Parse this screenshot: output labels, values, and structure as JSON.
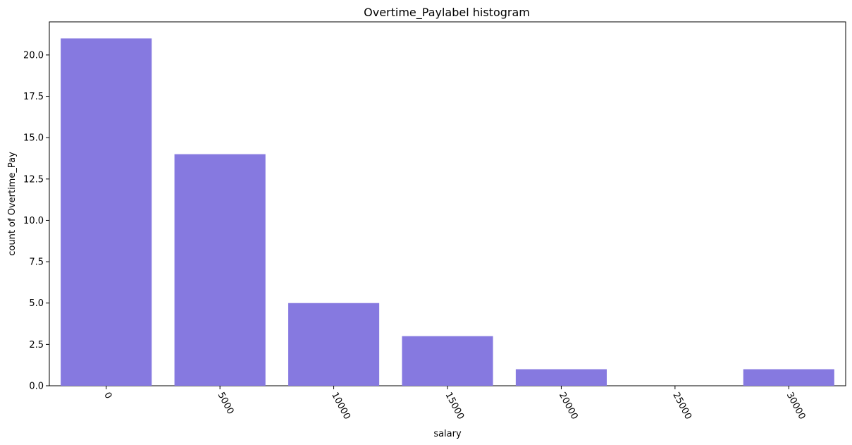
{
  "chart_data": {
    "type": "bar",
    "title": "Overtime_Paylabel histogram",
    "xlabel": "salary",
    "ylabel": "count of Overtime_Pay",
    "categories": [
      "0",
      "5000",
      "10000",
      "15000",
      "20000",
      "25000",
      "30000"
    ],
    "values": [
      21,
      14,
      5,
      3,
      1,
      0,
      1
    ],
    "ylim": [
      0,
      22
    ],
    "yticks": [
      "0.0",
      "2.5",
      "5.0",
      "7.5",
      "10.0",
      "12.5",
      "15.0",
      "17.5",
      "20.0"
    ],
    "grid": false,
    "bar_color": "#8679e0"
  }
}
